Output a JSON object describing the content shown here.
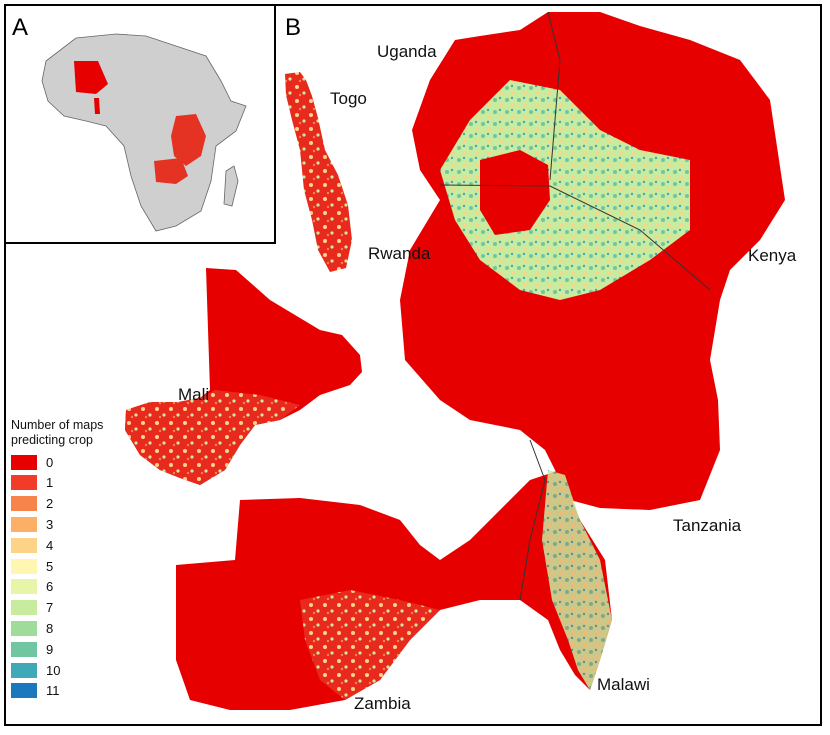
{
  "panels": {
    "a_label": "A",
    "b_label": "B"
  },
  "countries": {
    "uganda": "Uganda",
    "togo": "Togo",
    "rwanda": "Rwanda",
    "kenya": "Kenya",
    "mali": "Mali",
    "tanzania": "Tanzania",
    "malawi": "Malawi",
    "zambia": "Zambia"
  },
  "legend": {
    "title_line1": "Number of maps",
    "title_line2": "predicting crop",
    "items": [
      {
        "value": "0",
        "color": "#e60000"
      },
      {
        "value": "1",
        "color": "#f03c28"
      },
      {
        "value": "2",
        "color": "#f7844b"
      },
      {
        "value": "3",
        "color": "#fbb065"
      },
      {
        "value": "4",
        "color": "#fdd487"
      },
      {
        "value": "5",
        "color": "#fff6b2"
      },
      {
        "value": "6",
        "color": "#e6f5a8"
      },
      {
        "value": "7",
        "color": "#c8eba0"
      },
      {
        "value": "8",
        "color": "#9fdc9a"
      },
      {
        "value": "9",
        "color": "#6fc6a0"
      },
      {
        "value": "10",
        "color": "#40a9b8"
      },
      {
        "value": "11",
        "color": "#1a78bf"
      }
    ]
  }
}
